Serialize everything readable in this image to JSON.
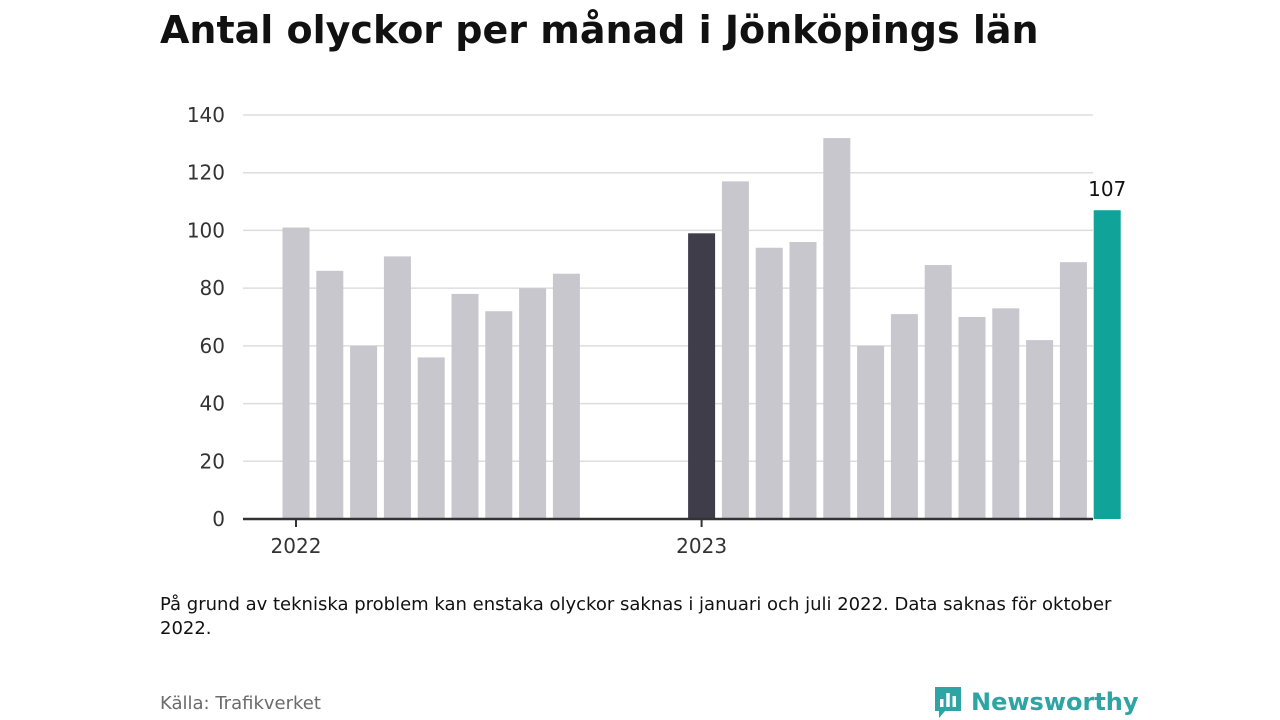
{
  "title": "Antal olyckor per månad i Jönköpings län",
  "note": "På grund av tekniska problem kan enstaka olyckor saknas i januari och juli 2022. Data saknas för oktober 2022.",
  "source": "Källa: Trafikverket",
  "brand": {
    "name": "Newsworthy",
    "icon": "bar-chart-badge-icon",
    "color": "#2fa4a4"
  },
  "chart_data": {
    "type": "bar",
    "title": "Antal olyckor per månad i Jönköpings län",
    "xlabel": "",
    "ylabel": "",
    "ylim": [
      0,
      140
    ],
    "yticks": [
      0,
      20,
      40,
      60,
      80,
      100,
      120,
      140
    ],
    "x_tick_labels": [
      "2022",
      "2023"
    ],
    "grid": true,
    "colors": {
      "default": "#c8c7ce",
      "january_2023": "#3f3d4a",
      "latest": "#0fa39a",
      "grid": "#dddddd",
      "axis": "#333333"
    },
    "categories": [
      "2022-01",
      "2022-02",
      "2022-03",
      "2022-04",
      "2022-05",
      "2022-06",
      "2022-07",
      "2022-08",
      "2022-09",
      "2022-10",
      "2022-11",
      "2022-12",
      "2023-01",
      "2023-02",
      "2023-03",
      "2023-04",
      "2023-05",
      "2023-06",
      "2023-07",
      "2023-08",
      "2023-09",
      "2023-10",
      "2023-11",
      "2023-12",
      "2024-01"
    ],
    "values": [
      101,
      86,
      60,
      91,
      56,
      78,
      72,
      80,
      85,
      null,
      null,
      null,
      99,
      117,
      94,
      96,
      132,
      60,
      71,
      88,
      70,
      73,
      62,
      89,
      107
    ],
    "highlight": {
      "2023-01": "january_2023",
      "2024-01": "latest"
    },
    "data_labels": [
      {
        "category": "2024-01",
        "text": "107"
      }
    ]
  }
}
